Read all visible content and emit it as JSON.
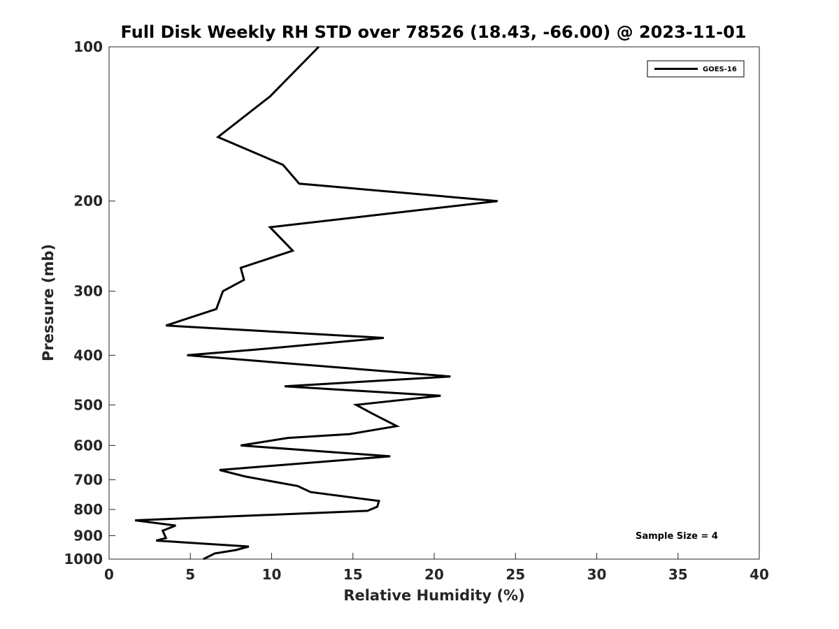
{
  "chart_data": {
    "type": "line",
    "title": "Full Disk Weekly RH STD over 78526 (18.43, -66.00) @ 2023-11-01",
    "xlabel": "Relative Humidity (%)",
    "ylabel": "Pressure (mb)",
    "xlim": [
      0,
      40
    ],
    "ylim": [
      100,
      1000
    ],
    "yscale": "log",
    "y_reversed": true,
    "x_ticks": [
      0,
      5,
      10,
      15,
      20,
      25,
      30,
      35,
      40
    ],
    "y_ticks": [
      100,
      200,
      300,
      400,
      500,
      600,
      700,
      800,
      900,
      1000
    ],
    "grid": false,
    "legend": {
      "position": "top-right",
      "entries": [
        "GOES-16"
      ]
    },
    "annotation": "Sample Size = 4",
    "series": [
      {
        "name": "GOES-16",
        "color": "#000000",
        "x": [
          12.9,
          9.9,
          6.7,
          10.7,
          11.7,
          23.9,
          9.9,
          11.3,
          8.1,
          8.3,
          7.0,
          6.6,
          3.5,
          16.9,
          9.0,
          4.8,
          21.0,
          10.8,
          20.4,
          15.2,
          16.2,
          17.7,
          14.8,
          11.0,
          8.1,
          17.3,
          6.8,
          8.4,
          11.6,
          12.4,
          16.6,
          16.5,
          15.9,
          1.6,
          4.1,
          3.3,
          3.5,
          2.9,
          8.6,
          7.8,
          6.5,
          5.8
        ],
        "y": [
          100,
          125,
          150,
          170,
          185,
          200,
          225,
          250,
          270,
          285,
          300,
          325,
          350,
          370,
          390,
          400,
          440,
          460,
          480,
          500,
          520,
          550,
          570,
          580,
          600,
          630,
          670,
          690,
          720,
          740,
          770,
          790,
          805,
          840,
          860,
          880,
          910,
          920,
          945,
          960,
          975,
          1000
        ]
      }
    ]
  }
}
